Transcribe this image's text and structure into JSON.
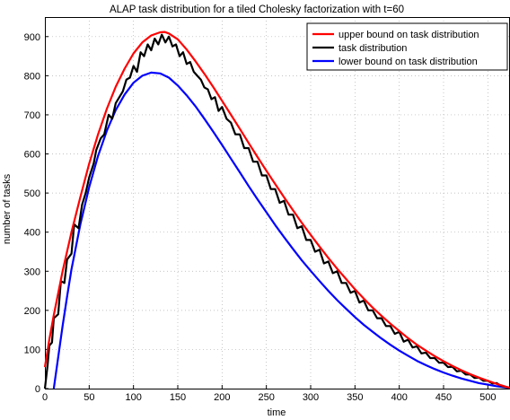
{
  "chart_data": {
    "type": "line",
    "title": "ALAP task distribution for a tiled Cholesky factorization with t=60",
    "xlabel": "time",
    "ylabel": "number of tasks",
    "xlim": [
      0,
      525
    ],
    "ylim": [
      0,
      950
    ],
    "xticks": [
      0,
      50,
      100,
      150,
      200,
      250,
      300,
      350,
      400,
      450,
      500
    ],
    "yticks": [
      0,
      100,
      200,
      300,
      400,
      500,
      600,
      700,
      800,
      900
    ],
    "grid": true,
    "legend_position": "top-right",
    "series": [
      {
        "name": "upper bound on task distribution",
        "color": "#ff0000",
        "x": [
          0,
          5,
          10,
          20,
          30,
          40,
          50,
          60,
          70,
          80,
          90,
          100,
          110,
          120,
          130,
          135,
          140,
          150,
          160,
          170,
          180,
          190,
          200,
          210,
          220,
          230,
          240,
          250,
          260,
          270,
          280,
          290,
          300,
          310,
          320,
          330,
          340,
          350,
          360,
          370,
          380,
          390,
          400,
          410,
          420,
          430,
          440,
          450,
          460,
          470,
          480,
          490,
          500,
          510,
          520,
          525
        ],
        "y": [
          55,
          125,
          188,
          300,
          400,
          490,
          575,
          650,
          716,
          772,
          818,
          857,
          885,
          903,
          911,
          912,
          908,
          893,
          867,
          837,
          805,
          771,
          736,
          700,
          664,
          628,
          592,
          557,
          523,
          489,
          456,
          424,
          393,
          363,
          334,
          306,
          280,
          254,
          230,
          207,
          186,
          166,
          147,
          129,
          112,
          97,
          83,
          70,
          58,
          47,
          37,
          28,
          20,
          12,
          5,
          2
        ]
      },
      {
        "name": "task distribution",
        "color": "#000000",
        "x": [
          0,
          3,
          5,
          8,
          10,
          15,
          18,
          22,
          25,
          30,
          33,
          38,
          42,
          46,
          50,
          55,
          58,
          63,
          67,
          72,
          76,
          80,
          84,
          88,
          92,
          96,
          100,
          104,
          108,
          112,
          116,
          120,
          124,
          128,
          132,
          136,
          140,
          144,
          148,
          152,
          156,
          160,
          164,
          168,
          172,
          176,
          180,
          184,
          188,
          192,
          196,
          200,
          205,
          210,
          215,
          220,
          225,
          230,
          235,
          240,
          245,
          250,
          255,
          260,
          265,
          270,
          275,
          280,
          285,
          290,
          295,
          300,
          305,
          310,
          315,
          320,
          325,
          330,
          335,
          340,
          345,
          350,
          355,
          360,
          365,
          370,
          375,
          380,
          385,
          390,
          395,
          400,
          405,
          410,
          415,
          420,
          425,
          430,
          435,
          440,
          445,
          450,
          455,
          460,
          465,
          470,
          475,
          480,
          485,
          490,
          495,
          500,
          505,
          510,
          515,
          520,
          525
        ],
        "y": [
          0,
          60,
          110,
          118,
          180,
          190,
          275,
          270,
          330,
          345,
          420,
          410,
          470,
          500,
          540,
          575,
          610,
          640,
          650,
          700,
          690,
          730,
          745,
          760,
          790,
          795,
          825,
          810,
          860,
          850,
          880,
          865,
          895,
          880,
          905,
          885,
          900,
          875,
          880,
          850,
          860,
          830,
          835,
          810,
          800,
          790,
          770,
          765,
          740,
          745,
          710,
          720,
          690,
          680,
          650,
          650,
          615,
          615,
          580,
          580,
          545,
          545,
          510,
          510,
          475,
          480,
          445,
          445,
          410,
          415,
          380,
          380,
          350,
          355,
          320,
          325,
          295,
          300,
          270,
          270,
          245,
          250,
          220,
          225,
          200,
          200,
          180,
          180,
          160,
          160,
          140,
          145,
          120,
          125,
          105,
          108,
          90,
          92,
          78,
          78,
          66,
          66,
          55,
          56,
          44,
          46,
          36,
          36,
          27,
          28,
          20,
          20,
          13,
          14,
          7,
          4,
          2
        ]
      },
      {
        "name": "lower bound on task distribution",
        "color": "#0000ff",
        "x": [
          10,
          15,
          20,
          25,
          30,
          40,
          50,
          60,
          70,
          80,
          90,
          100,
          110,
          120,
          130,
          140,
          150,
          160,
          170,
          180,
          190,
          200,
          210,
          220,
          230,
          240,
          250,
          260,
          270,
          280,
          290,
          300,
          310,
          320,
          330,
          340,
          350,
          360,
          370,
          380,
          390,
          400,
          410,
          420,
          430,
          440,
          450,
          460,
          470,
          480,
          490,
          500,
          510,
          520,
          525
        ],
        "y": [
          0,
          80,
          160,
          235,
          305,
          420,
          515,
          595,
          660,
          712,
          752,
          782,
          800,
          808,
          806,
          795,
          775,
          750,
          722,
          690,
          657,
          623,
          588,
          553,
          518,
          484,
          451,
          418,
          387,
          357,
          328,
          301,
          275,
          250,
          226,
          204,
          183,
          163,
          145,
          128,
          112,
          97,
          84,
          71,
          60,
          50,
          41,
          33,
          26,
          20,
          14,
          10,
          6,
          3,
          2
        ]
      }
    ]
  }
}
